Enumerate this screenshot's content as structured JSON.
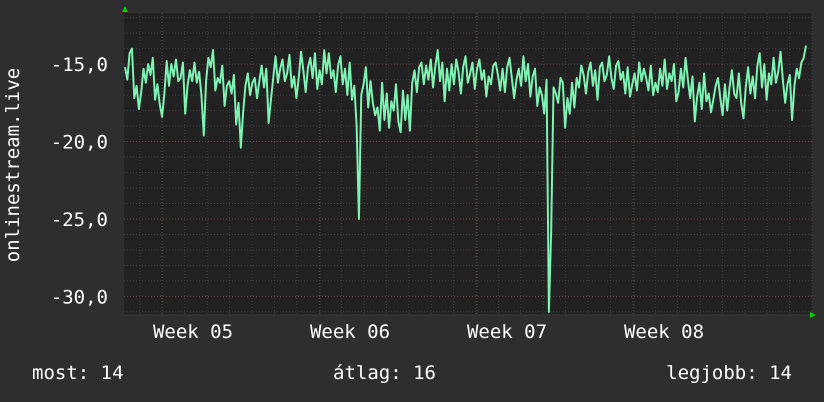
{
  "chart_data": {
    "type": "line",
    "ylabel": "onlinestream.live",
    "ylim": [
      -31.2,
      -11.7
    ],
    "y_ticks": [
      -15,
      -20,
      -25,
      -30
    ],
    "y_tick_labels": [
      "-15,0",
      "-20,0",
      "-25,0",
      "-30,0"
    ],
    "x_tick_labels": [
      "Week 05",
      "Week 06",
      "Week 07",
      "Week 08"
    ],
    "grid": true,
    "colors": {
      "line": "#7ef2b4",
      "background": "#2e2e2e",
      "plot": "#222222",
      "grid": "#4a4a4a",
      "axis_arrow": "#00cc00"
    },
    "series": [
      {
        "values": [
          -15.2,
          -16.0,
          -14.3,
          -14.0,
          -17.2,
          -16.4,
          -17.9,
          -16.8,
          -15.3,
          -16.2,
          -15.0,
          -15.7,
          -14.6,
          -17.3,
          -16.3,
          -17.6,
          -18.4,
          -16.9,
          -14.8,
          -16.4,
          -15.0,
          -15.8,
          -14.7,
          -16.1,
          -15.9,
          -14.9,
          -18.2,
          -16.4,
          -15.4,
          -16.1,
          -14.9,
          -16.2,
          -15.5,
          -17.0,
          -19.6,
          -16.1,
          -14.6,
          -15.2,
          -14.1,
          -16.7,
          -15.9,
          -16.2,
          -15.1,
          -17.7,
          -16.4,
          -16.1,
          -16.9,
          -15.7,
          -18.9,
          -17.5,
          -20.4,
          -18.1,
          -16.4,
          -15.6,
          -17.0,
          -16.2,
          -15.9,
          -17.2,
          -16.1,
          -15.1,
          -16.5,
          -15.3,
          -18.8,
          -17.3,
          -15.9,
          -14.5,
          -16.2,
          -15.3,
          -14.7,
          -16.1,
          -15.6,
          -14.4,
          -16.5,
          -15.8,
          -17.2,
          -15.9,
          -14.2,
          -15.4,
          -16.8,
          -15.2,
          -14.6,
          -15.9,
          -14.3,
          -16.6,
          -15.4,
          -16.3,
          -14.1,
          -15.6,
          -14.3,
          -15.9,
          -15.4,
          -16.8,
          -15.1,
          -14.5,
          -16.3,
          -15.3,
          -17.0,
          -14.9,
          -17.3,
          -16.4,
          -19.0,
          -25.0,
          -17.0,
          -16.3,
          -15.2,
          -17.8,
          -16.1,
          -17.5,
          -18.3,
          -17.8,
          -19.3,
          -16.2,
          -18.6,
          -16.9,
          -19.1,
          -17.4,
          -18.0,
          -16.3,
          -18.7,
          -19.4,
          -16.7,
          -18.6,
          -17.0,
          -19.3,
          -16.2,
          -15.4,
          -16.8,
          -15.2,
          -14.9,
          -16.3,
          -15.1,
          -16.0,
          -14.7,
          -16.5,
          -15.1,
          -14.1,
          -16.1,
          -14.9,
          -17.4,
          -15.3,
          -16.7,
          -15.0,
          -16.3,
          -14.7,
          -15.5,
          -16.9,
          -15.2,
          -14.5,
          -16.2,
          -15.6,
          -14.9,
          -16.6,
          -15.3,
          -14.7,
          -16.0,
          -15.4,
          -17.1,
          -15.8,
          -16.3,
          -15.1,
          -14.9,
          -15.7,
          -16.7,
          -15.3,
          -16.8,
          -15.2,
          -14.6,
          -15.9,
          -17.2,
          -16.0,
          -15.3,
          -16.4,
          -14.5,
          -16.1,
          -15.0,
          -17.1,
          -15.8,
          -15.3,
          -17.7,
          -16.5,
          -17.0,
          -18.2,
          -16.0,
          -31.0,
          -25.7,
          -16.5,
          -16.9,
          -17.5,
          -15.9,
          -16.2,
          -19.1,
          -17.2,
          -18.2,
          -16.2,
          -17.8,
          -15.9,
          -16.5,
          -15.1,
          -15.7,
          -16.9,
          -15.5,
          -14.9,
          -16.4,
          -15.4,
          -17.3,
          -15.2,
          -14.9,
          -16.1,
          -15.7,
          -14.5,
          -15.9,
          -16.6,
          -15.1,
          -14.8,
          -16.0,
          -15.5,
          -16.9,
          -15.2,
          -17.1,
          -16.3,
          -15.6,
          -16.7,
          -14.9,
          -16.1,
          -15.3,
          -15.9,
          -16.7,
          -15.1,
          -17.0,
          -16.2,
          -16.8,
          -15.3,
          -16.4,
          -14.7,
          -16.6,
          -15.6,
          -16.1,
          -15.0,
          -17.4,
          -16.8,
          -15.3,
          -16.5,
          -14.6,
          -16.0,
          -17.2,
          -15.8,
          -18.7,
          -17.1,
          -16.2,
          -17.9,
          -15.6,
          -17.4,
          -16.9,
          -18.1,
          -17.3,
          -16.4,
          -15.9,
          -17.2,
          -18.3,
          -16.3,
          -18.0,
          -16.5,
          -15.4,
          -16.9,
          -17.2,
          -15.6,
          -17.5,
          -18.5,
          -16.5,
          -15.2,
          -16.9,
          -15.8,
          -17.2,
          -15.1,
          -14.3,
          -16.5,
          -15.0,
          -17.3,
          -15.6,
          -16.3,
          -14.6,
          -16.2,
          -15.5,
          -14.2,
          -16.0,
          -17.5,
          -16.3,
          -15.7,
          -18.6,
          -16.4,
          -15.3,
          -15.9,
          -14.9,
          -14.6,
          -13.8
        ]
      }
    ]
  },
  "legend_footer": {
    "current": "most: 14",
    "average": "átlag: 16",
    "best": "legjobb: 14"
  }
}
